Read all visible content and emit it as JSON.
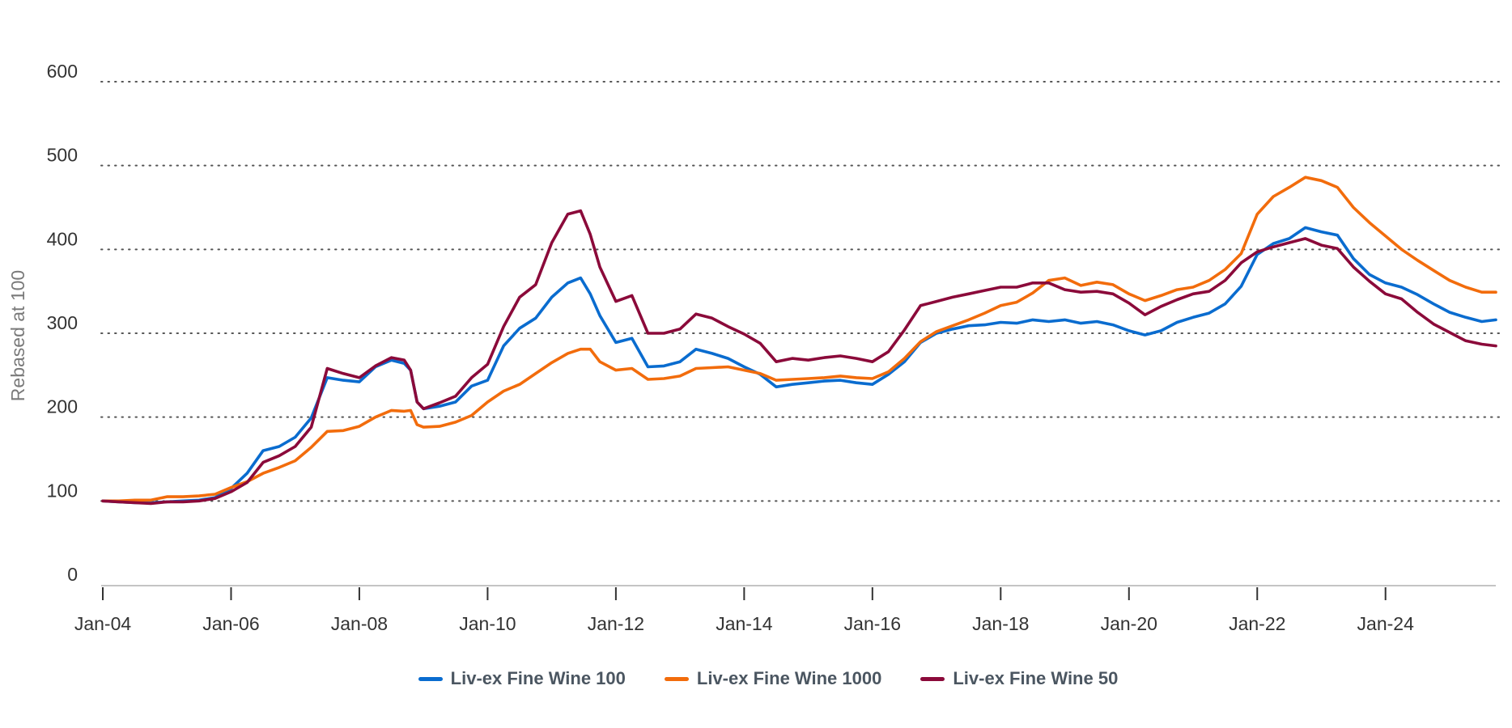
{
  "chart_data": {
    "type": "line",
    "title": "",
    "xlabel": "",
    "ylabel": "Rebased at 100",
    "ylim": [
      0,
      600
    ],
    "yticks": [
      "0",
      "100",
      "200",
      "300",
      "400",
      "500",
      "600"
    ],
    "ytick_values": [
      0,
      100,
      200,
      300,
      400,
      500,
      600
    ],
    "xticks": [
      "Jan-04",
      "Jan-06",
      "Jan-08",
      "Jan-10",
      "Jan-12",
      "Jan-14",
      "Jan-16",
      "Jan-18",
      "Jan-20",
      "Jan-22",
      "Jan-24"
    ],
    "xtick_values": [
      2004,
      2006,
      2008,
      2010,
      2012,
      2014,
      2016,
      2018,
      2020,
      2022,
      2024
    ],
    "xlim": [
      2004,
      2025.72
    ],
    "grid": "horizontal-dotted",
    "legend_position": "bottom-center",
    "x": [
      2004.0,
      2004.25,
      2004.5,
      2004.75,
      2005.0,
      2005.25,
      2005.5,
      2005.75,
      2006.0,
      2006.25,
      2006.5,
      2006.75,
      2007.0,
      2007.25,
      2007.5,
      2007.75,
      2008.0,
      2008.25,
      2008.5,
      2008.7,
      2008.8,
      2008.9,
      2009.0,
      2009.25,
      2009.5,
      2009.75,
      2010.0,
      2010.25,
      2010.5,
      2010.75,
      2011.0,
      2011.25,
      2011.45,
      2011.6,
      2011.75,
      2012.0,
      2012.25,
      2012.5,
      2012.75,
      2013.0,
      2013.25,
      2013.5,
      2013.75,
      2014.0,
      2014.25,
      2014.5,
      2014.75,
      2015.0,
      2015.25,
      2015.5,
      2015.75,
      2016.0,
      2016.25,
      2016.5,
      2016.75,
      2017.0,
      2017.25,
      2017.5,
      2017.75,
      2018.0,
      2018.25,
      2018.5,
      2018.75,
      2019.0,
      2019.25,
      2019.5,
      2019.75,
      2020.0,
      2020.25,
      2020.5,
      2020.75,
      2021.0,
      2021.25,
      2021.5,
      2021.75,
      2022.0,
      2022.25,
      2022.5,
      2022.75,
      2023.0,
      2023.25,
      2023.5,
      2023.75,
      2024.0,
      2024.25,
      2024.5,
      2024.75,
      2025.0,
      2025.25,
      2025.5,
      2025.72
    ],
    "series": [
      {
        "name": "Liv-ex Fine Wine 100",
        "color": "#0a6ccf",
        "values": [
          100,
          99,
          98,
          98,
          99,
          100,
          101,
          104,
          115,
          133,
          160,
          165,
          176,
          199,
          247,
          244,
          242,
          260,
          268,
          264,
          256,
          218,
          210,
          213,
          218,
          237,
          244,
          285,
          306,
          318,
          343,
          360,
          366,
          347,
          321,
          289,
          294,
          260,
          261,
          266,
          281,
          276,
          270,
          260,
          251,
          236,
          239,
          241,
          243,
          244,
          241,
          239,
          251,
          266,
          289,
          300,
          305,
          309,
          310,
          313,
          312,
          316,
          314,
          316,
          312,
          314,
          310,
          303,
          298,
          303,
          313,
          319,
          324,
          335,
          356,
          394,
          407,
          413,
          426,
          421,
          417,
          389,
          370,
          360,
          355,
          346,
          335,
          325,
          319,
          314,
          316
        ]
      },
      {
        "name": "Liv-ex Fine Wine 1000",
        "color": "#f26c0c",
        "values": [
          100,
          100,
          101,
          101,
          105,
          105,
          106,
          108,
          116,
          123,
          133,
          140,
          148,
          164,
          183,
          184,
          189,
          200,
          208,
          207,
          208,
          191,
          188,
          189,
          194,
          202,
          218,
          231,
          239,
          252,
          265,
          276,
          281,
          281,
          266,
          256,
          258,
          245,
          246,
          249,
          258,
          259,
          260,
          256,
          252,
          244,
          245,
          246,
          247,
          249,
          247,
          246,
          254,
          270,
          290,
          302,
          309,
          316,
          324,
          333,
          337,
          348,
          363,
          366,
          357,
          361,
          358,
          347,
          339,
          345,
          352,
          355,
          363,
          376,
          395,
          442,
          463,
          474,
          486,
          482,
          474,
          450,
          432,
          416,
          400,
          387,
          375,
          363,
          355,
          349,
          349
        ]
      },
      {
        "name": "Liv-ex Fine Wine 50",
        "color": "#8b0a3a",
        "values": [
          100,
          99,
          98,
          97,
          99,
          99,
          100,
          103,
          111,
          122,
          146,
          154,
          165,
          188,
          258,
          252,
          247,
          261,
          271,
          268,
          256,
          218,
          210,
          217,
          225,
          247,
          263,
          308,
          343,
          358,
          408,
          442,
          446,
          418,
          379,
          338,
          345,
          300,
          300,
          305,
          323,
          318,
          308,
          299,
          288,
          266,
          270,
          268,
          271,
          273,
          270,
          266,
          278,
          304,
          333,
          338,
          343,
          347,
          351,
          355,
          355,
          360,
          360,
          352,
          349,
          350,
          347,
          336,
          322,
          332,
          340,
          347,
          350,
          363,
          384,
          397,
          403,
          408,
          413,
          405,
          401,
          379,
          362,
          347,
          341,
          325,
          311,
          301,
          291,
          287,
          285
        ]
      }
    ]
  }
}
